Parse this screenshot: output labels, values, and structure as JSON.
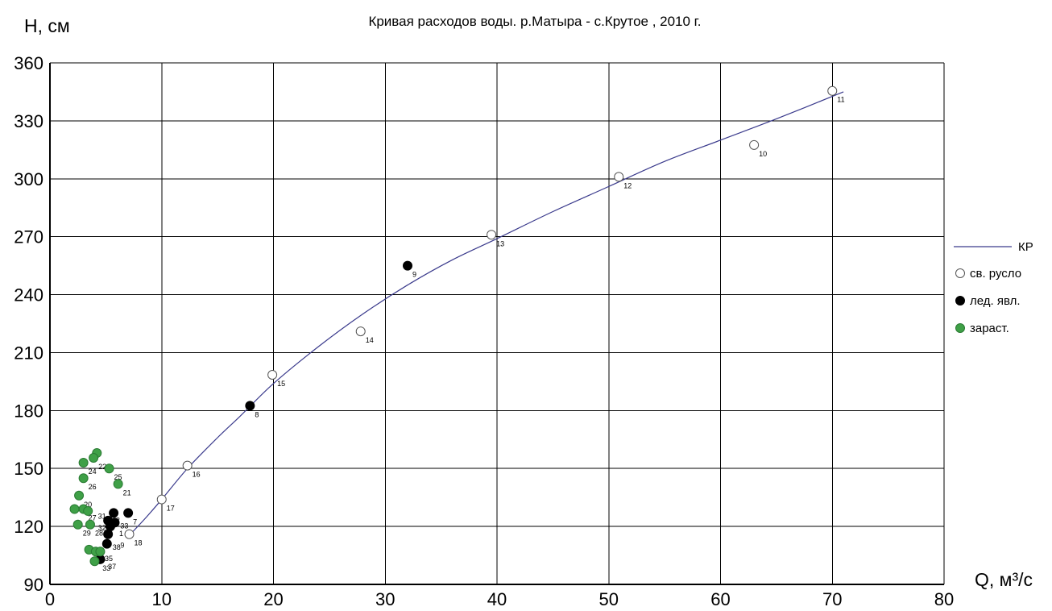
{
  "chart_data": {
    "type": "scatter",
    "title": "Кривая расходов воды. р.Матыра  - с.Крутое , 2010 г.",
    "ylabel": "H, см",
    "xlabel": "Q, м³/с",
    "xlim": [
      0,
      80
    ],
    "ylim": [
      90,
      360
    ],
    "xticks": [
      0,
      10,
      20,
      30,
      40,
      50,
      60,
      70,
      80
    ],
    "yticks": [
      90,
      120,
      150,
      180,
      210,
      240,
      270,
      300,
      330,
      360
    ],
    "grid": true,
    "legend_position": "right",
    "curve": {
      "name": "КР",
      "color": "#3a3a8c",
      "x": [
        7.2,
        8.5,
        10.0,
        12.3,
        15.0,
        17.0,
        20.0,
        24.0,
        28.0,
        32.0,
        36.0,
        40.0,
        45.0,
        50.0,
        55.0,
        60.0,
        65.0,
        71.0
      ],
      "y": [
        116,
        124,
        134,
        150,
        166,
        177,
        194,
        213,
        230,
        245,
        258,
        269,
        283,
        296,
        309,
        320,
        331,
        345
      ]
    },
    "series": [
      {
        "name": "св. русло",
        "marker": "hollow",
        "color": "#ffffff",
        "points": [
          {
            "x": 7.1,
            "y": 116,
            "label": "18"
          },
          {
            "x": 10.0,
            "y": 134,
            "label": "17"
          },
          {
            "x": 12.3,
            "y": 151.5,
            "label": "16"
          },
          {
            "x": 19.9,
            "y": 198.5,
            "label": "15"
          },
          {
            "x": 27.8,
            "y": 221,
            "label": "14"
          },
          {
            "x": 39.5,
            "y": 271,
            "label": "13"
          },
          {
            "x": 50.9,
            "y": 301,
            "label": "12"
          },
          {
            "x": 63.0,
            "y": 317.5,
            "label": "10"
          },
          {
            "x": 70.0,
            "y": 345.5,
            "label": "11"
          }
        ]
      },
      {
        "name": "лед. явл.",
        "marker": "filled",
        "color": "#000000",
        "points": [
          {
            "x": 5.1,
            "y": 111,
            "label": ""
          },
          {
            "x": 4.5,
            "y": 103,
            "label": ""
          },
          {
            "x": 5.2,
            "y": 116,
            "label": ""
          },
          {
            "x": 5.2,
            "y": 123,
            "label": ""
          },
          {
            "x": 5.4,
            "y": 120,
            "label": ""
          },
          {
            "x": 5.8,
            "y": 122,
            "label": ""
          },
          {
            "x": 5.7,
            "y": 127,
            "label": ""
          },
          {
            "x": 7.0,
            "y": 127,
            "label": "7"
          },
          {
            "x": 17.9,
            "y": 182.5,
            "label": "8"
          },
          {
            "x": 32.0,
            "y": 255,
            "label": "9"
          }
        ]
      },
      {
        "name": "зараст.",
        "marker": "filled",
        "color": "#3fa047",
        "points": [
          {
            "x": 3.0,
            "y": 153,
            "label": "24"
          },
          {
            "x": 4.2,
            "y": 158,
            "label": ""
          },
          {
            "x": 3.9,
            "y": 155.5,
            "label": "22"
          },
          {
            "x": 5.3,
            "y": 150,
            "label": "25"
          },
          {
            "x": 3.0,
            "y": 145,
            "label": "26"
          },
          {
            "x": 6.1,
            "y": 142,
            "label": "21"
          },
          {
            "x": 2.6,
            "y": 136,
            "label": "20"
          },
          {
            "x": 2.2,
            "y": 129,
            "label": ""
          },
          {
            "x": 3.0,
            "y": 129,
            "label": "27"
          },
          {
            "x": 3.4,
            "y": 128,
            "label": ""
          },
          {
            "x": 2.5,
            "y": 121,
            "label": "29"
          },
          {
            "x": 3.6,
            "y": 121,
            "label": "28"
          },
          {
            "x": 3.5,
            "y": 108,
            "label": ""
          },
          {
            "x": 4.1,
            "y": 107,
            "label": ""
          },
          {
            "x": 4.5,
            "y": 107,
            "label": ""
          },
          {
            "x": 4.0,
            "y": 102,
            "label": ""
          }
        ]
      }
    ],
    "cluster_labels": [
      {
        "x": 4.3,
        "y": 124,
        "label": "31"
      },
      {
        "x": 4.3,
        "y": 118,
        "label": "32"
      },
      {
        "x": 6.3,
        "y": 119,
        "label": "33"
      },
      {
        "x": 5.9,
        "y": 122,
        "label": "2"
      },
      {
        "x": 6.2,
        "y": 115,
        "label": "1"
      },
      {
        "x": 5.6,
        "y": 108,
        "label": "38"
      },
      {
        "x": 6.3,
        "y": 109,
        "label": "9"
      },
      {
        "x": 4.9,
        "y": 102,
        "label": "35"
      },
      {
        "x": 4.7,
        "y": 97,
        "label": "33"
      },
      {
        "x": 5.2,
        "y": 98,
        "label": "37"
      }
    ]
  }
}
